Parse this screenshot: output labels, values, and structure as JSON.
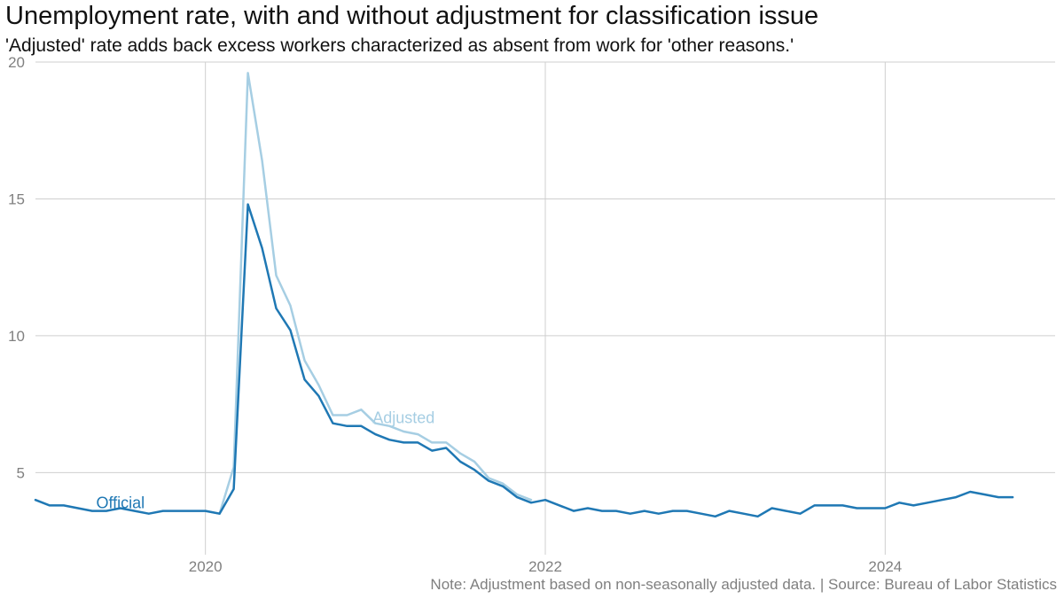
{
  "title": "Unemployment rate, with and without adjustment for classification issue",
  "subtitle": "'Adjusted' rate adds back excess workers characterized as absent from work for 'other reasons.'",
  "note": "Note: Adjustment based on non-seasonally adjusted data. | Source: Bureau of Labor Statistics",
  "chart_data": {
    "type": "line",
    "x_unit": "month",
    "x_start": "2019-01",
    "xlim": [
      "2019-01",
      "2025-01"
    ],
    "ylim": [
      2.0,
      20.0
    ],
    "x_ticks": [
      {
        "value": "2020-01",
        "label": "2020"
      },
      {
        "value": "2022-01",
        "label": "2022"
      },
      {
        "value": "2024-01",
        "label": "2024"
      }
    ],
    "y_ticks": [
      5,
      10,
      15,
      20
    ],
    "grid": true,
    "legend": "none",
    "series": [
      {
        "name": "Adjusted",
        "color": "#a6cee3",
        "start": "2020-01",
        "values": [
          3.6,
          3.5,
          5.2,
          19.6,
          16.4,
          12.2,
          11.1,
          9.1,
          8.2,
          7.1,
          7.1,
          7.3,
          6.8,
          6.7,
          6.5,
          6.4,
          6.1,
          6.1,
          5.7,
          5.4,
          4.8,
          4.6,
          4.2,
          4.0
        ]
      },
      {
        "name": "Official",
        "color": "#1f78b4",
        "start": "2019-01",
        "values": [
          4.0,
          3.8,
          3.8,
          3.7,
          3.6,
          3.6,
          3.7,
          3.6,
          3.5,
          3.6,
          3.6,
          3.6,
          3.6,
          3.5,
          4.4,
          14.8,
          13.2,
          11.0,
          10.2,
          8.4,
          7.8,
          6.8,
          6.7,
          6.7,
          6.4,
          6.2,
          6.1,
          6.1,
          5.8,
          5.9,
          5.4,
          5.1,
          4.7,
          4.5,
          4.1,
          3.9,
          4.0,
          3.8,
          3.6,
          3.7,
          3.6,
          3.6,
          3.5,
          3.6,
          3.5,
          3.6,
          3.6,
          3.5,
          3.4,
          3.6,
          3.5,
          3.4,
          3.7,
          3.6,
          3.5,
          3.8,
          3.8,
          3.8,
          3.7,
          3.7,
          3.7,
          3.9,
          3.8,
          3.9,
          4.0,
          4.1,
          4.3,
          4.2,
          4.1,
          4.1
        ]
      }
    ],
    "annotations": [
      {
        "text": "Official",
        "series": "Official",
        "x": "2019-07",
        "y": 3.7
      },
      {
        "text": "Adjusted",
        "series": "Adjusted",
        "x": "2021-03",
        "y": 6.8
      }
    ]
  }
}
